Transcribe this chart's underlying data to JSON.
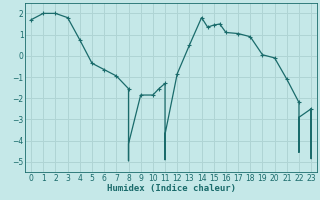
{
  "title": "",
  "xlabel": "Humidex (Indice chaleur)",
  "ylabel": "",
  "bg_color": "#c5e8e8",
  "grid_color": "#afd4d4",
  "line_color": "#1a6b6b",
  "marker_color": "#1a6b6b",
  "xlim": [
    -0.5,
    23.5
  ],
  "ylim": [
    -5.5,
    2.5
  ],
  "yticks": [
    -5,
    -4,
    -3,
    -2,
    -1,
    0,
    1,
    2
  ],
  "xticks": [
    0,
    1,
    2,
    3,
    4,
    5,
    6,
    7,
    8,
    9,
    10,
    11,
    12,
    13,
    14,
    15,
    16,
    17,
    18,
    19,
    20,
    21,
    22,
    23
  ],
  "x": [
    0,
    1,
    2,
    3,
    4,
    5,
    6,
    7,
    8,
    8,
    8,
    8,
    8,
    9,
    10,
    10.5,
    11,
    11,
    11,
    11,
    12,
    13,
    14,
    14.5,
    15,
    15.5,
    16,
    17,
    18,
    19,
    20,
    21,
    22,
    22,
    22,
    22,
    22,
    23,
    23,
    23,
    23
  ],
  "y": [
    1.7,
    2.0,
    2.0,
    1.8,
    0.75,
    -0.35,
    -0.65,
    -0.95,
    -1.55,
    -2.9,
    -4.15,
    -4.95,
    -4.15,
    -1.85,
    -1.85,
    -1.55,
    -1.3,
    -3.7,
    -4.9,
    -3.7,
    -0.85,
    0.5,
    1.8,
    1.35,
    1.45,
    1.5,
    1.1,
    1.05,
    0.9,
    0.05,
    -0.1,
    -1.1,
    -2.2,
    -2.9,
    -3.7,
    -4.55,
    -2.9,
    -2.5,
    -3.7,
    -4.85,
    -2.5
  ],
  "marker_xy": [
    [
      0,
      1.7
    ],
    [
      1,
      2.0
    ],
    [
      2,
      2.0
    ],
    [
      3,
      1.8
    ],
    [
      4,
      0.75
    ],
    [
      5,
      -0.35
    ],
    [
      6,
      -0.65
    ],
    [
      7,
      -0.95
    ],
    [
      8,
      -1.55
    ],
    [
      9,
      -1.85
    ],
    [
      10,
      -1.85
    ],
    [
      10.5,
      -1.55
    ],
    [
      11,
      -1.3
    ],
    [
      12,
      -0.85
    ],
    [
      13,
      0.5
    ],
    [
      14,
      1.8
    ],
    [
      14.5,
      1.35
    ],
    [
      15,
      1.45
    ],
    [
      15.5,
      1.5
    ],
    [
      16,
      1.1
    ],
    [
      17,
      1.05
    ],
    [
      18,
      0.9
    ],
    [
      19,
      0.05
    ],
    [
      20,
      -0.1
    ],
    [
      21,
      -1.1
    ],
    [
      22,
      -2.2
    ],
    [
      23,
      -2.5
    ]
  ],
  "tick_fontsize": 5.5,
  "xlabel_fontsize": 6.5
}
